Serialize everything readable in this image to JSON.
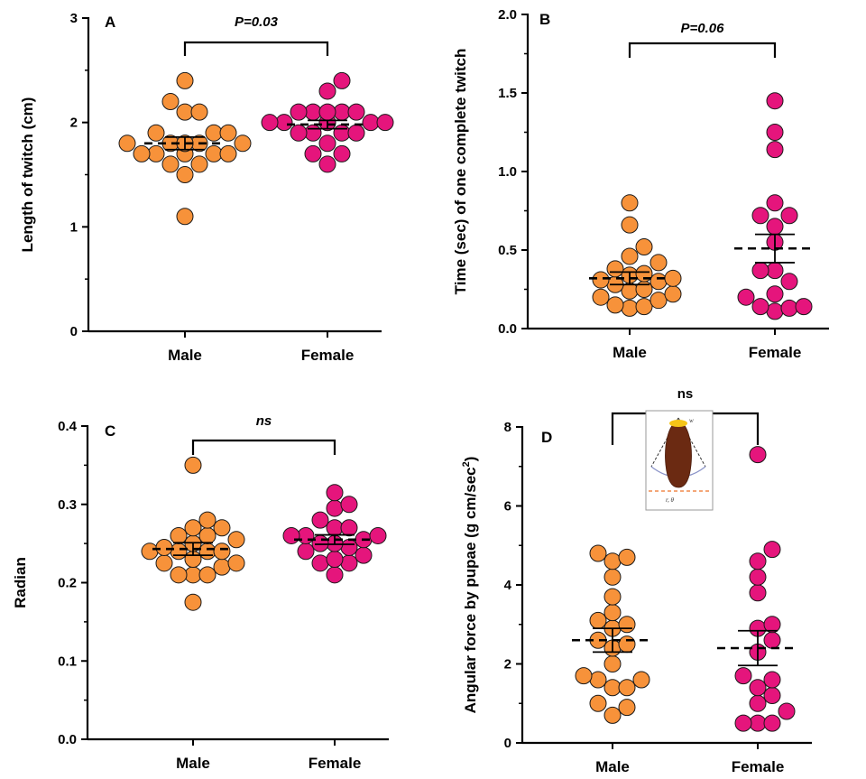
{
  "colors": {
    "male": "#F7923A",
    "female": "#E5157C",
    "inset_body": "#6B2A12",
    "inset_head": "#F5C518",
    "inset_line": "#F08A4B"
  },
  "inset": {
    "top_label": "w",
    "bottom_label": "r, θ"
  },
  "chart_data": [
    {
      "panel": "A",
      "type": "scatter",
      "ylabel": "Length of twitch (cm)",
      "categories": [
        "Male",
        "Female"
      ],
      "ylim": [
        0,
        3
      ],
      "yticks": [
        "0",
        "1",
        "2",
        "3"
      ],
      "significance": "P=0.03",
      "sig_style": "italic",
      "series": [
        {
          "category": "Male",
          "values": [
            1.1,
            1.5,
            1.6,
            1.6,
            1.7,
            1.7,
            1.7,
            1.7,
            1.7,
            1.8,
            1.8,
            1.8,
            1.8,
            1.8,
            1.8,
            1.9,
            1.9,
            1.9,
            2.1,
            2.1,
            2.2,
            2.4
          ],
          "mean": 1.8,
          "sem": 0.06
        },
        {
          "category": "Female",
          "values": [
            1.6,
            1.7,
            1.7,
            1.8,
            1.9,
            1.9,
            1.9,
            1.9,
            2.0,
            2.0,
            2.0,
            2.0,
            2.0,
            2.0,
            2.1,
            2.1,
            2.1,
            2.1,
            2.1,
            2.3,
            2.4
          ],
          "mean": 1.98,
          "sem": 0.04
        }
      ]
    },
    {
      "panel": "B",
      "type": "scatter",
      "ylabel": "Time (sec) of one complete twitch",
      "categories": [
        "Male",
        "Female"
      ],
      "ylim": [
        0,
        2.0
      ],
      "yticks": [
        "0.0",
        "0.5",
        "1.0",
        "1.5",
        "2.0"
      ],
      "significance": "P=0.06",
      "sig_style": "italic",
      "series": [
        {
          "category": "Male",
          "values": [
            0.13,
            0.14,
            0.15,
            0.18,
            0.2,
            0.22,
            0.24,
            0.25,
            0.28,
            0.3,
            0.31,
            0.32,
            0.34,
            0.35,
            0.38,
            0.42,
            0.46,
            0.52,
            0.66,
            0.8
          ],
          "mean": 0.32,
          "sem": 0.04
        },
        {
          "category": "Female",
          "values": [
            0.11,
            0.13,
            0.14,
            0.14,
            0.2,
            0.22,
            0.3,
            0.37,
            0.37,
            0.55,
            0.65,
            0.72,
            0.72,
            0.8,
            1.14,
            1.25,
            1.45
          ],
          "mean": 0.51,
          "sem": 0.09
        }
      ]
    },
    {
      "panel": "C",
      "type": "scatter",
      "ylabel": "Radian",
      "categories": [
        "Male",
        "Female"
      ],
      "ylim": [
        0,
        0.4
      ],
      "yticks": [
        "0.0",
        "0.1",
        "0.2",
        "0.3",
        "0.4"
      ],
      "significance": "ns",
      "sig_style": "italic",
      "series": [
        {
          "category": "Male",
          "values": [
            0.175,
            0.21,
            0.21,
            0.21,
            0.22,
            0.225,
            0.225,
            0.23,
            0.24,
            0.24,
            0.24,
            0.24,
            0.245,
            0.25,
            0.255,
            0.26,
            0.26,
            0.27,
            0.27,
            0.28,
            0.35
          ],
          "mean": 0.243,
          "sem": 0.008
        },
        {
          "category": "Female",
          "values": [
            0.21,
            0.225,
            0.225,
            0.23,
            0.235,
            0.24,
            0.245,
            0.25,
            0.25,
            0.255,
            0.26,
            0.26,
            0.26,
            0.27,
            0.27,
            0.28,
            0.295,
            0.3,
            0.315
          ],
          "mean": 0.255,
          "sem": 0.006
        }
      ]
    },
    {
      "panel": "D",
      "type": "scatter",
      "ylabel": "Angular force by pupae (g cm/sec²)",
      "categories": [
        "Male",
        "Female"
      ],
      "ylim": [
        0,
        8
      ],
      "yticks": [
        "0",
        "2",
        "4",
        "6",
        "8"
      ],
      "significance": "ns",
      "sig_style": "plain",
      "series": [
        {
          "category": "Male",
          "values": [
            0.7,
            0.9,
            1.0,
            1.4,
            1.4,
            1.6,
            1.6,
            1.7,
            2.0,
            2.4,
            2.5,
            2.6,
            2.9,
            3.0,
            3.1,
            3.3,
            3.7,
            4.2,
            4.6,
            4.7,
            4.8
          ],
          "mean": 2.6,
          "sem": 0.3
        },
        {
          "category": "Female",
          "values": [
            0.5,
            0.5,
            0.5,
            0.8,
            1.0,
            1.2,
            1.4,
            1.6,
            1.7,
            2.3,
            2.6,
            2.9,
            3.0,
            3.8,
            4.2,
            4.6,
            4.9,
            7.3
          ],
          "mean": 2.4,
          "sem": 0.44
        }
      ]
    }
  ]
}
